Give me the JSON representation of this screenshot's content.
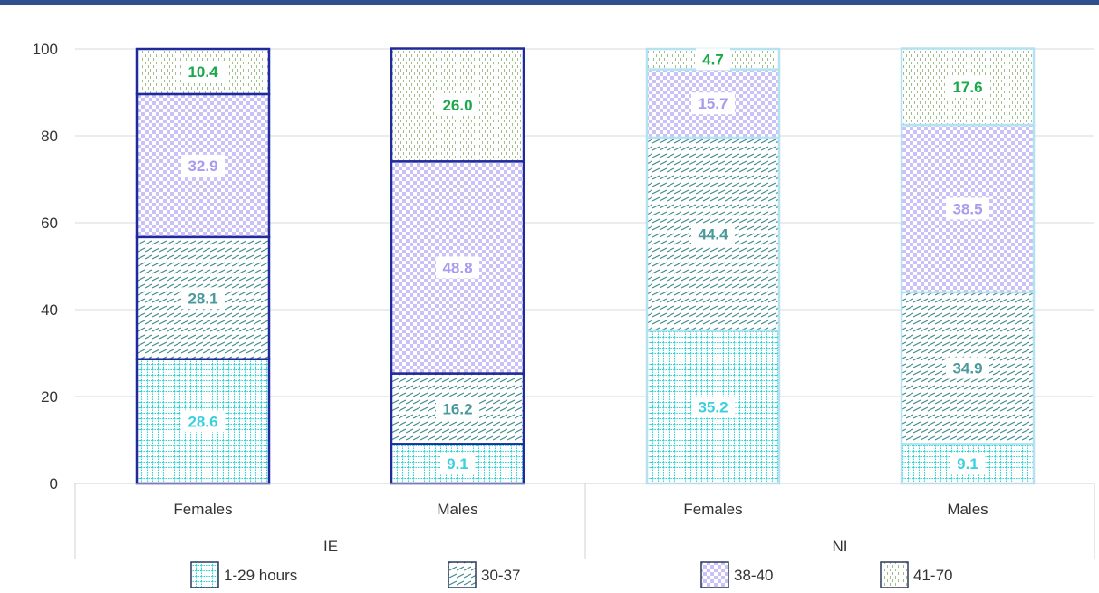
{
  "chart_data": {
    "type": "bar",
    "stacked": true,
    "ylim": [
      0,
      100
    ],
    "yticks": [
      0,
      20,
      40,
      60,
      80,
      100
    ],
    "grid": true,
    "legend_position": "bottom",
    "groups": [
      {
        "label": "IE",
        "bar_outline_color": "#1f2a9c",
        "categories": [
          "Females",
          "Males"
        ]
      },
      {
        "label": "NI",
        "bar_outline_color": "#b4e2f2",
        "categories": [
          "Females",
          "Males"
        ]
      }
    ],
    "series": [
      {
        "name": "1-29 hours",
        "color": "#2fd6d6",
        "label_color": "#3bd0e0",
        "values": [
          28.6,
          9.1,
          35.2,
          9.1
        ]
      },
      {
        "name": "30-37",
        "color": "#3a8a8a",
        "label_color": "#4a9a9c",
        "values": [
          28.1,
          16.2,
          44.4,
          34.9
        ]
      },
      {
        "name": "38-40",
        "color": "#a79cf0",
        "label_color": "#a79cf0",
        "values": [
          32.9,
          48.8,
          15.7,
          38.5
        ]
      },
      {
        "name": "41-70",
        "color": "#9dc08b",
        "label_color": "#1aa84a",
        "values": [
          10.4,
          26.0,
          4.7,
          17.6
        ]
      }
    ]
  }
}
